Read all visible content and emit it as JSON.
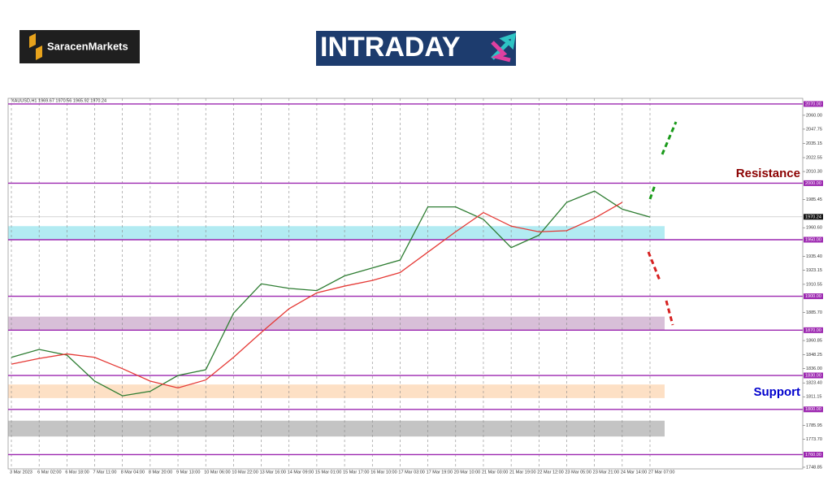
{
  "chart_data": {
    "type": "line",
    "brand": "SaracenMarkets",
    "banner": "INTRADAY",
    "symbol": "XAUUSD,H1 1969.67 1970.56 1965.92 1970.24",
    "categories": [
      "3 Mar 2023",
      "6 Mar 02:00",
      "6 Mar 18:00",
      "7 Mar 11:00",
      "8 Mar 04:00",
      "8 Mar 20:00",
      "9 Mar 13:00",
      "10 Mar 06:00",
      "10 Mar 22:00",
      "13 Mar 16:00",
      "14 Mar 09:00",
      "15 Mar 01:00",
      "15 Mar 17:00",
      "16 Mar 10:00",
      "17 Mar 03:00",
      "17 Mar 19:00",
      "20 Mar 10:00",
      "21 Mar 03:00",
      "21 Mar 19:00",
      "22 Mar 12:00",
      "23 Mar 05:00",
      "23 Mar 21:00",
      "24 Mar 14:00",
      "27 Mar 07:00"
    ],
    "series": [
      {
        "color": "#2e7d32",
        "values": [
          1846,
          1853,
          1848,
          1825,
          1812,
          1816,
          1830,
          1835,
          1885,
          1911,
          1907,
          1905,
          1918,
          1925,
          1932,
          1979,
          1979,
          1968,
          1943,
          1954,
          1983,
          1993,
          1977,
          1970
        ]
      },
      {
        "color": "#e53935",
        "values": [
          1840,
          1845,
          1849,
          1846,
          1836,
          1825,
          1819,
          1826,
          1846,
          1868,
          1889,
          1903,
          1909,
          1914,
          1921,
          1939,
          1957,
          1974,
          1962,
          1957,
          1958,
          1969,
          1983,
          null
        ]
      }
    ],
    "ylim": [
      1747.4,
      2075
    ],
    "yticks": [
      {
        "value": 2060,
        "label": "2060.00"
      },
      {
        "value": 2047.75,
        "label": "2047.75"
      },
      {
        "value": 2035.15,
        "label": "2035.15"
      },
      {
        "value": 2022.55,
        "label": "2022.55"
      },
      {
        "value": 2010.3,
        "label": "2010.30"
      },
      {
        "value": 1985.45,
        "label": "1985.45"
      },
      {
        "value": 1960.6,
        "label": "1960.60"
      },
      {
        "value": 1935.4,
        "label": "1935.40"
      },
      {
        "value": 1923.15,
        "label": "1923.15"
      },
      {
        "value": 1910.55,
        "label": "1910.55"
      },
      {
        "value": 1885.7,
        "label": "1885.70"
      },
      {
        "value": 1860.85,
        "label": "1860.85"
      },
      {
        "value": 1848.25,
        "label": "1848.25"
      },
      {
        "value": 1836,
        "label": "1836.00"
      },
      {
        "value": 1823.4,
        "label": "1823.40"
      },
      {
        "value": 1811.15,
        "label": "1811.15"
      },
      {
        "value": 1785.95,
        "label": "1785.95"
      },
      {
        "value": 1773.7,
        "label": "1773.70"
      },
      {
        "value": 1748.85,
        "label": "1748.85"
      }
    ],
    "levels": [
      {
        "value": 2070,
        "label": "2070.00"
      },
      {
        "value": 2000,
        "label": "2000.00"
      },
      {
        "value": 1950,
        "label": "1950.00"
      },
      {
        "value": 1900,
        "label": "1900.00"
      },
      {
        "value": 1870,
        "label": "1870.00"
      },
      {
        "value": 1830,
        "label": "1830.00"
      },
      {
        "value": 1800,
        "label": "1800.00"
      },
      {
        "value": 1760,
        "label": "1760.00"
      }
    ],
    "current": {
      "value": 1970.24,
      "label": "1970.24"
    },
    "zones": [
      {
        "from": 1950,
        "to": 1962,
        "color": "#b2ebf2"
      },
      {
        "from": 1870,
        "to": 1882,
        "color": "#d8bfd8"
      },
      {
        "from": 1810,
        "to": 1822,
        "color": "#fde0c5"
      },
      {
        "from": 1776,
        "to": 1790,
        "color": "#c4c4c4"
      }
    ],
    "annotations": [
      {
        "text": "Resistance",
        "color": "#8b0000"
      },
      {
        "text": "Support",
        "color": "#0000cd"
      }
    ],
    "grid": true
  }
}
